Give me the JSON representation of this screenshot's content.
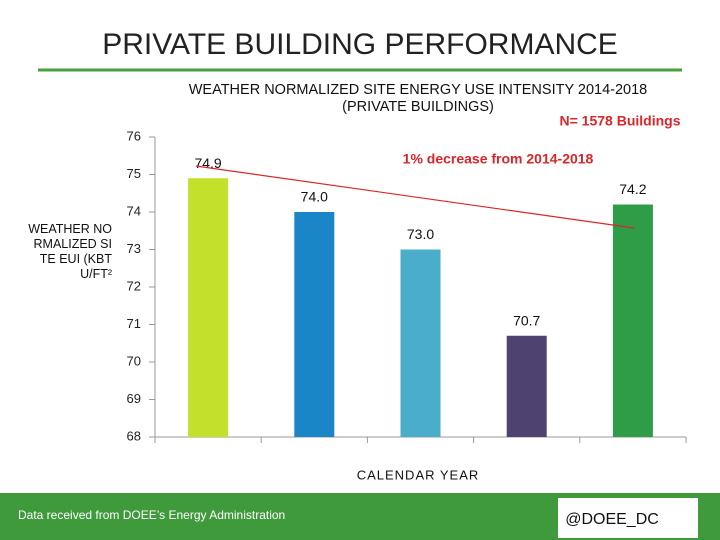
{
  "slide": {
    "title": "PRIVATE BUILDING PERFORMANCE",
    "footer_note": "Data received from DOEE’s Energy Administration",
    "handle": "@DOEE_DC"
  },
  "chart_data": {
    "type": "bar",
    "title": "WEATHER NORMALIZED SITE ENERGY USE INTENSITY 2014-2018",
    "subtitle": "(PRIVATE BUILDINGS)",
    "annotations": [
      "N= 1578 Buildings",
      "1% decrease from 2014-2018"
    ],
    "y_label": "WEATHER NORMALIZED SITE EUI (KBTU/FT²",
    "x_label": "CALENDAR YEAR",
    "categories": [
      null,
      null,
      null,
      null,
      null
    ],
    "values": [
      74.9,
      74.0,
      73.0,
      70.7,
      74.2
    ],
    "value_labels": [
      "74.9",
      "74.0",
      "73.0",
      "70.7",
      "74.2"
    ],
    "colors": [
      "#c3e02a",
      "#1a86c8",
      "#4aadc9",
      "#4e4271",
      "#2f9d48"
    ],
    "ylim": [
      68,
      76
    ],
    "yticks": [
      68,
      69,
      70,
      71,
      72,
      73,
      74,
      75,
      76
    ],
    "grid": false
  }
}
